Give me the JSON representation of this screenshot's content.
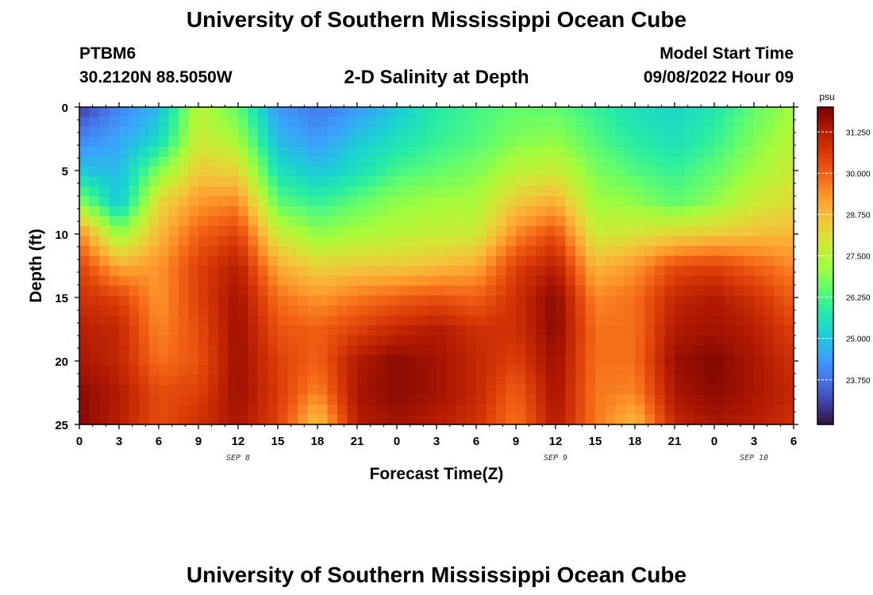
{
  "header": {
    "title": "University of Southern Mississippi Ocean Cube",
    "station_id": "PTBM6",
    "station_coords": "30.2120N  88.5050W",
    "plot_title": "2-D Salinity at Depth",
    "model_start_label": "Model Start Time",
    "model_start_value": "09/08/2022 Hour 09"
  },
  "footer": {
    "title": "University of Southern Mississippi Ocean Cube"
  },
  "chart_data": {
    "type": "heatmap",
    "title": "2-D Salinity at Depth",
    "xlabel": "Forecast Time(Z)",
    "ylabel": "Depth (ft)",
    "colorbar_label": "psu",
    "x_range_hours": [
      0,
      54
    ],
    "y_range_ft": [
      0,
      25
    ],
    "y_inverted": true,
    "x_ticks": [
      "0",
      "3",
      "6",
      "9",
      "12",
      "15",
      "18",
      "21",
      "0",
      "3",
      "6",
      "9",
      "12",
      "15",
      "18",
      "21",
      "0",
      "3",
      "6"
    ],
    "y_ticks": [
      "0",
      "5",
      "10",
      "15",
      "20",
      "25"
    ],
    "date_labels": [
      {
        "hour": 12,
        "label": "SEP 8"
      },
      {
        "hour": 36,
        "label": "SEP 9"
      },
      {
        "hour": 51,
        "label": "SEP 10"
      }
    ],
    "colorbar_ticks": [
      "31.250",
      "30.000",
      "28.750",
      "27.500",
      "26.250",
      "25.000",
      "23.750"
    ],
    "colorbar_range": [
      22.4,
      32.0
    ],
    "colors": {
      "scale": [
        "#30123b",
        "#4145ab",
        "#4675ed",
        "#39a2fc",
        "#1bcfd4",
        "#24eca6",
        "#61fc6c",
        "#a4fc3b",
        "#d1e834",
        "#f3c63a",
        "#fe9b2d",
        "#f36315",
        "#d93806",
        "#b11901",
        "#7a0402"
      ],
      "ticks": "#000000"
    },
    "salinity_grid": {
      "depth_ft": [
        0,
        2.5,
        5,
        7.5,
        10,
        12.5,
        15,
        17.5,
        20,
        22.5,
        25
      ],
      "hour": [
        0,
        3,
        6,
        9,
        12,
        15,
        18,
        21,
        24,
        27,
        30,
        33,
        36,
        39,
        42,
        45,
        48,
        51,
        54
      ],
      "values": [
        [
          23.0,
          24.0,
          24.8,
          27.5,
          26.5,
          24.3,
          23.8,
          24.3,
          25.0,
          25.8,
          26.2,
          26.5,
          26.5,
          26.0,
          25.5,
          25.3,
          25.7,
          26.5,
          27.2
        ],
        [
          24.0,
          24.5,
          25.3,
          27.8,
          27.2,
          24.8,
          24.3,
          25.0,
          25.5,
          26.0,
          26.3,
          26.8,
          27.0,
          26.3,
          25.8,
          25.5,
          26.0,
          26.8,
          27.5
        ],
        [
          25.0,
          24.8,
          26.8,
          28.5,
          28.3,
          25.5,
          25.0,
          25.5,
          26.2,
          26.5,
          26.8,
          27.5,
          27.8,
          26.8,
          26.3,
          26.0,
          26.5,
          27.2,
          27.8
        ],
        [
          27.0,
          25.0,
          28.2,
          29.3,
          29.5,
          26.5,
          26.0,
          26.5,
          27.0,
          27.2,
          27.3,
          28.5,
          29.0,
          27.2,
          27.0,
          26.5,
          27.0,
          27.8,
          28.2
        ],
        [
          29.5,
          27.0,
          28.8,
          30.0,
          30.5,
          27.8,
          27.0,
          27.3,
          27.5,
          27.7,
          27.8,
          29.5,
          30.3,
          27.8,
          28.0,
          28.3,
          28.5,
          28.7,
          28.8
        ],
        [
          30.5,
          29.0,
          29.3,
          30.5,
          31.2,
          29.0,
          28.3,
          28.5,
          28.5,
          28.7,
          29.0,
          30.5,
          31.2,
          28.8,
          29.3,
          30.3,
          30.5,
          30.0,
          29.5
        ],
        [
          30.8,
          30.5,
          29.3,
          30.5,
          31.5,
          29.8,
          29.3,
          29.7,
          30.0,
          30.2,
          30.0,
          30.8,
          31.8,
          29.5,
          29.8,
          31.0,
          31.3,
          30.8,
          30.0
        ],
        [
          31.2,
          31.0,
          29.5,
          30.3,
          31.6,
          30.2,
          30.0,
          30.5,
          31.0,
          31.3,
          30.8,
          30.8,
          31.8,
          29.8,
          29.8,
          31.3,
          31.5,
          31.2,
          30.5
        ],
        [
          31.4,
          31.0,
          29.8,
          30.2,
          31.6,
          30.5,
          30.0,
          31.3,
          31.8,
          31.5,
          31.0,
          30.5,
          31.6,
          29.8,
          29.8,
          31.6,
          31.9,
          31.4,
          30.8
        ],
        [
          31.8,
          31.3,
          30.3,
          30.5,
          31.6,
          30.6,
          29.5,
          31.4,
          31.8,
          31.5,
          31.0,
          30.0,
          31.5,
          29.7,
          29.5,
          31.4,
          31.8,
          31.4,
          31.0
        ],
        [
          31.8,
          31.2,
          30.3,
          30.8,
          31.4,
          30.5,
          28.5,
          31.2,
          31.5,
          31.2,
          30.8,
          29.7,
          31.3,
          29.7,
          28.7,
          31.0,
          31.4,
          31.2,
          30.8
        ]
      ]
    }
  }
}
